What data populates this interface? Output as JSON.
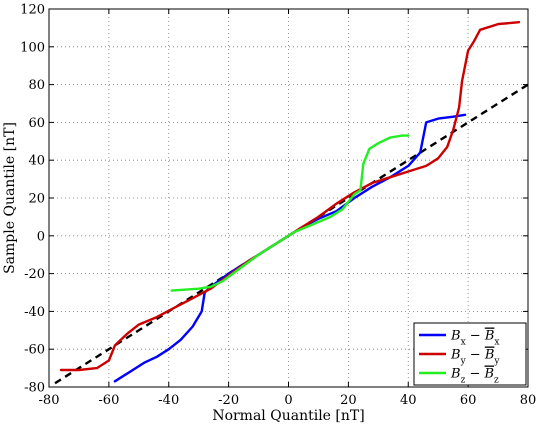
{
  "chart_data": {
    "type": "line",
    "xlabel": "Normal Quantile [nT]",
    "ylabel": "Sample Quantile [nT]",
    "xlim": [
      -80,
      80
    ],
    "ylim": [
      -80,
      120
    ],
    "xticks": [
      -80,
      -60,
      -40,
      -20,
      0,
      20,
      40,
      60,
      80
    ],
    "yticks": [
      -80,
      -60,
      -40,
      -20,
      0,
      20,
      40,
      60,
      80,
      100,
      120
    ],
    "grid": true,
    "legend_position": "bottom-right",
    "reference_line": {
      "style": "dashed",
      "color": "#000000",
      "x": [
        -78,
        80
      ],
      "y": [
        -78,
        80
      ]
    },
    "series": [
      {
        "name": "B_x − B̄_x",
        "color": "#0000ff",
        "x": [
          -58,
          -55,
          -52,
          -48,
          -44,
          -40,
          -36,
          -32,
          -29,
          -28,
          -26,
          -20,
          -14,
          -8,
          -2,
          4,
          10,
          16,
          22,
          28,
          34,
          40,
          44,
          46,
          50,
          55,
          59
        ],
        "y": [
          -77,
          -74,
          -71,
          -67,
          -64,
          -60,
          -55,
          -48,
          -40,
          -30,
          -27,
          -20,
          -14,
          -8,
          -2,
          4,
          9,
          13,
          20,
          26,
          31,
          37,
          44,
          60,
          62,
          63,
          64
        ]
      },
      {
        "name": "B_y − B̄_y",
        "color": "#cc0000",
        "x": [
          -76,
          -70,
          -64,
          -60,
          -58,
          -54,
          -50,
          -44,
          -38,
          -32,
          -26,
          -20,
          -14,
          -8,
          -2,
          4,
          10,
          16,
          22,
          28,
          34,
          40,
          46,
          50,
          53,
          55,
          57,
          58,
          60,
          62,
          64,
          70,
          77
        ],
        "y": [
          -71,
          -71,
          -70,
          -66,
          -58,
          -52,
          -47,
          -43,
          -38,
          -33,
          -28,
          -21,
          -14,
          -8,
          -2,
          4,
          10,
          17,
          23,
          28,
          31,
          34,
          37,
          41,
          47,
          56,
          68,
          82,
          98,
          103,
          109,
          112,
          113
        ]
      },
      {
        "name": "B_z − B̄_z",
        "color": "#22ee22",
        "x": [
          -39,
          -30,
          -26,
          -22,
          -16,
          -10,
          -4,
          2,
          8,
          14,
          18,
          22,
          24,
          25,
          27,
          30,
          34,
          38,
          40
        ],
        "y": [
          -29,
          -28,
          -27,
          -24,
          -17,
          -10,
          -4,
          2,
          6,
          10,
          14,
          22,
          24,
          38,
          46,
          49,
          52,
          53,
          53
        ]
      }
    ]
  }
}
